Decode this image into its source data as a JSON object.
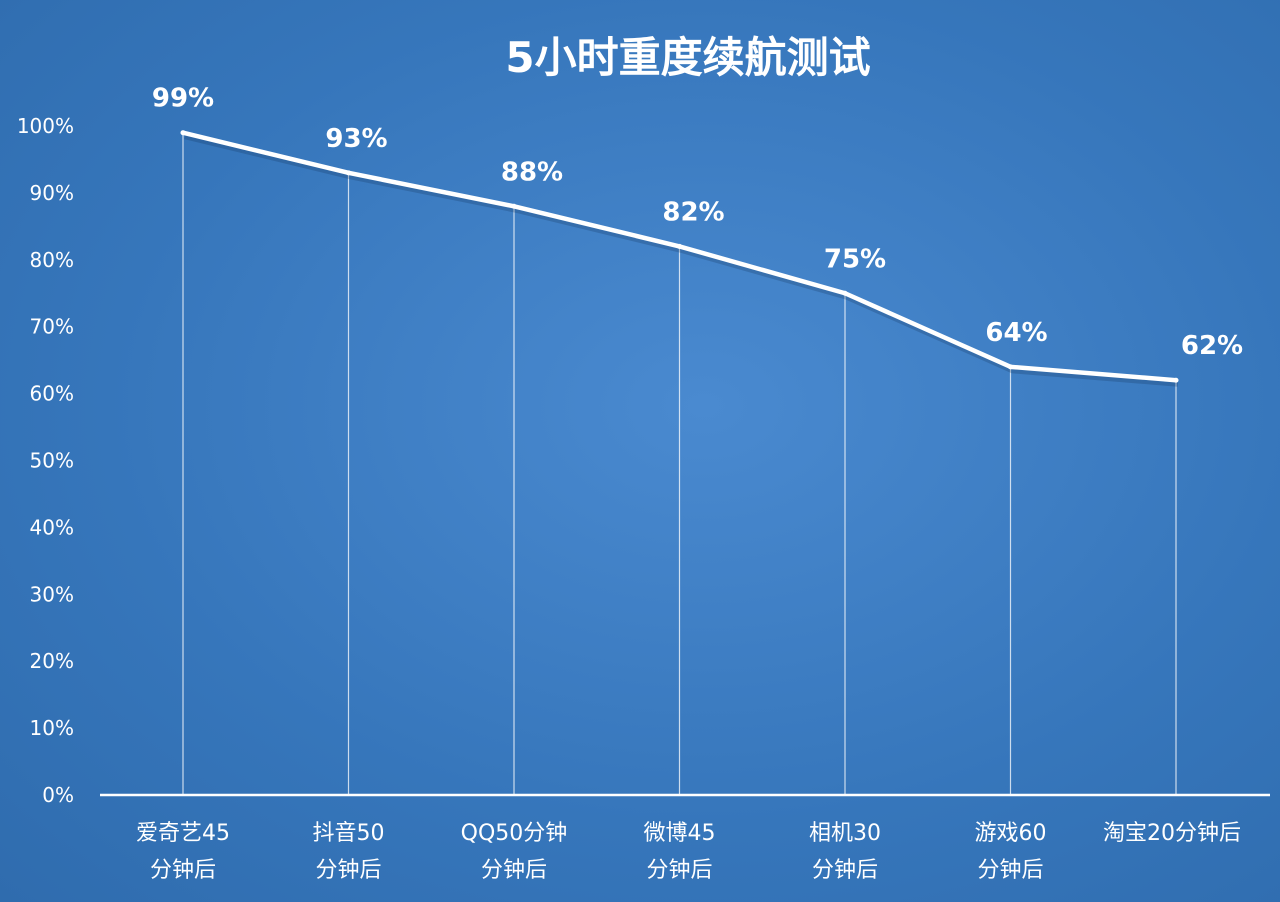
{
  "chart_data": {
    "type": "line",
    "title": "5小时重度续航测试",
    "categories": [
      [
        "爱奇艺45",
        "分钟后"
      ],
      [
        "抖音50",
        "分钟后"
      ],
      [
        "QQ50分钟",
        "分钟后"
      ],
      [
        "微博45",
        "分钟后"
      ],
      [
        "相机30",
        "分钟后"
      ],
      [
        "游戏60",
        "分钟后"
      ],
      [
        "淘宝20分钟后"
      ]
    ],
    "series": [
      {
        "values": [
          99,
          93,
          88,
          82,
          75,
          64,
          62
        ]
      }
    ],
    "data_labels": [
      "99%",
      "93%",
      "88%",
      "82%",
      "75%",
      "64%",
      "62%"
    ],
    "y_ticks": [
      "0%",
      "10%",
      "20%",
      "30%",
      "40%",
      "50%",
      "60%",
      "70%",
      "80%",
      "90%",
      "100%"
    ],
    "ylim": [
      0,
      100
    ],
    "grid": false,
    "drop_lines": true,
    "colors": {
      "background": "#3676bb",
      "line": "#ffffff",
      "text": "#ffffff"
    }
  }
}
